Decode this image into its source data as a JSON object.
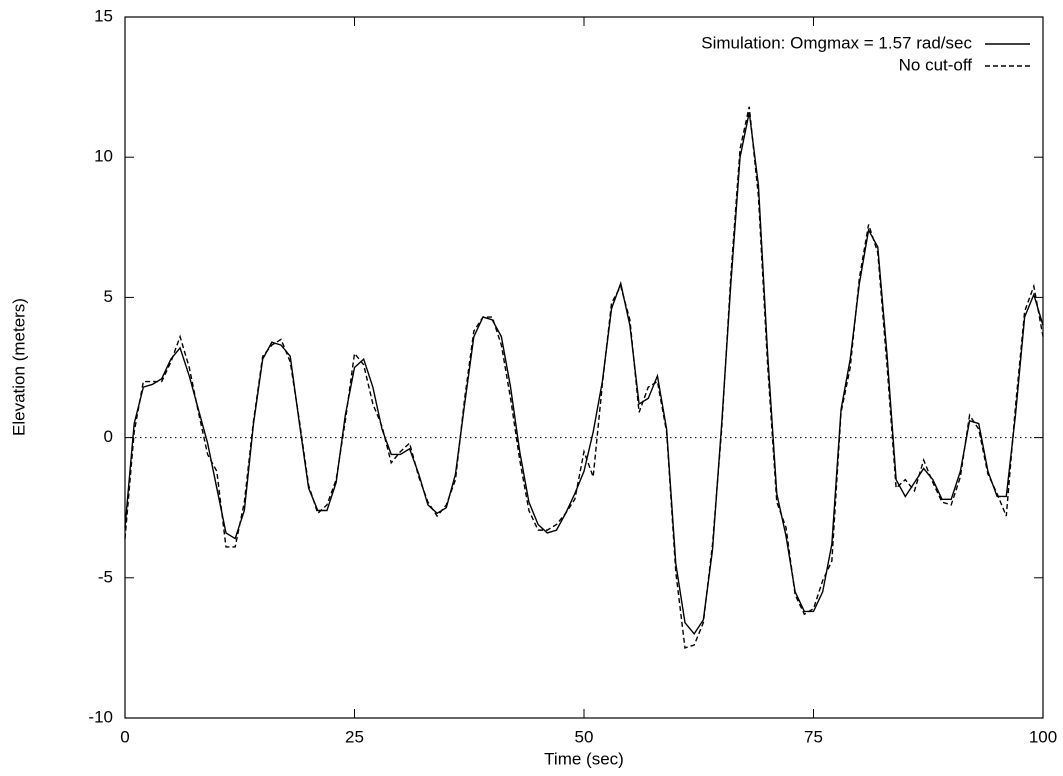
{
  "chart_data": {
    "type": "line",
    "xlabel": "Time (sec)",
    "ylabel": "Elevation (meters)",
    "x": [
      0,
      1,
      2,
      3,
      4,
      5,
      6,
      7,
      8,
      9,
      10,
      11,
      12,
      13,
      14,
      15,
      16,
      17,
      18,
      19,
      20,
      21,
      22,
      23,
      24,
      25,
      26,
      27,
      28,
      29,
      30,
      31,
      32,
      33,
      34,
      35,
      36,
      37,
      38,
      39,
      40,
      41,
      42,
      43,
      44,
      45,
      46,
      47,
      48,
      49,
      50,
      51,
      52,
      53,
      54,
      55,
      56,
      57,
      58,
      59,
      60,
      61,
      62,
      63,
      64,
      65,
      66,
      67,
      68,
      69,
      70,
      71,
      72,
      73,
      74,
      75,
      76,
      77,
      78,
      79,
      80,
      81,
      82,
      83,
      84,
      85,
      86,
      87,
      88,
      89,
      90,
      91,
      92,
      93,
      94,
      95,
      96,
      97,
      98,
      99,
      100
    ],
    "series": [
      {
        "name": "Simulation: Omgmax = 1.57 rad/sec",
        "color": "#000000",
        "style": "solid",
        "values": [
          -3.2,
          0.5,
          1.8,
          1.9,
          2.1,
          2.8,
          3.2,
          2.2,
          1.0,
          -0.2,
          -1.8,
          -3.4,
          -3.6,
          -2.6,
          0.5,
          2.8,
          3.4,
          3.3,
          2.9,
          0.5,
          -1.8,
          -2.6,
          -2.6,
          -1.6,
          0.8,
          2.5,
          2.8,
          1.8,
          0.3,
          -0.6,
          -0.6,
          -0.4,
          -1.3,
          -2.4,
          -2.7,
          -2.5,
          -1.3,
          1.2,
          3.6,
          4.3,
          4.2,
          3.6,
          1.8,
          -0.5,
          -2.3,
          -3.1,
          -3.4,
          -3.3,
          -2.7,
          -2.0,
          -1.2,
          0.2,
          2.0,
          4.6,
          5.5,
          4.0,
          1.2,
          1.4,
          2.2,
          0.3,
          -4.5,
          -6.6,
          -7.0,
          -6.5,
          -4.0,
          0.5,
          5.5,
          10.0,
          11.6,
          9.0,
          3.0,
          -2.0,
          -3.5,
          -5.5,
          -6.2,
          -6.2,
          -5.5,
          -3.8,
          1.0,
          2.8,
          5.5,
          7.4,
          6.8,
          3.0,
          -1.5,
          -2.1,
          -1.6,
          -1.1,
          -1.5,
          -2.2,
          -2.2,
          -1.2,
          0.6,
          0.5,
          -1.2,
          -2.1,
          -2.1,
          0.8,
          4.3,
          5.1,
          4.0
        ]
      },
      {
        "name": "No cut-off",
        "color": "#000000",
        "style": "dashed",
        "values": [
          -3.6,
          0.2,
          2.0,
          2.0,
          2.0,
          2.7,
          3.6,
          2.5,
          0.9,
          -0.6,
          -1.2,
          -3.9,
          -3.9,
          -2.3,
          0.6,
          2.9,
          3.3,
          3.5,
          2.7,
          0.6,
          -1.7,
          -2.7,
          -2.4,
          -1.5,
          0.6,
          3.0,
          2.6,
          1.2,
          0.4,
          -0.9,
          -0.5,
          -0.2,
          -1.4,
          -2.3,
          -2.8,
          -2.4,
          -1.5,
          1.4,
          3.8,
          4.3,
          4.3,
          3.3,
          1.4,
          -0.8,
          -2.6,
          -3.3,
          -3.3,
          -3.1,
          -2.7,
          -2.2,
          -0.5,
          -1.4,
          1.9,
          4.8,
          5.4,
          4.2,
          0.9,
          1.8,
          2.0,
          0.2,
          -4.8,
          -7.5,
          -7.4,
          -6.6,
          -3.8,
          0.3,
          5.8,
          10.3,
          11.8,
          8.6,
          2.6,
          -2.3,
          -3.2,
          -5.6,
          -6.3,
          -6.1,
          -5.1,
          -4.4,
          0.9,
          2.5,
          5.7,
          7.6,
          6.6,
          2.6,
          -1.8,
          -1.5,
          -1.9,
          -0.8,
          -1.6,
          -2.3,
          -2.4,
          -1.4,
          0.8,
          0.3,
          -1.3,
          -2.0,
          -2.8,
          1.1,
          4.5,
          5.4,
          3.6
        ]
      }
    ],
    "xlim": [
      0,
      100
    ],
    "xticks": [
      0,
      25,
      50,
      75,
      100
    ],
    "ylim": [
      -10,
      15
    ],
    "yticks": [
      -10,
      -5,
      0,
      5,
      10,
      15
    ],
    "zero_line": true,
    "legend": "top-right"
  }
}
